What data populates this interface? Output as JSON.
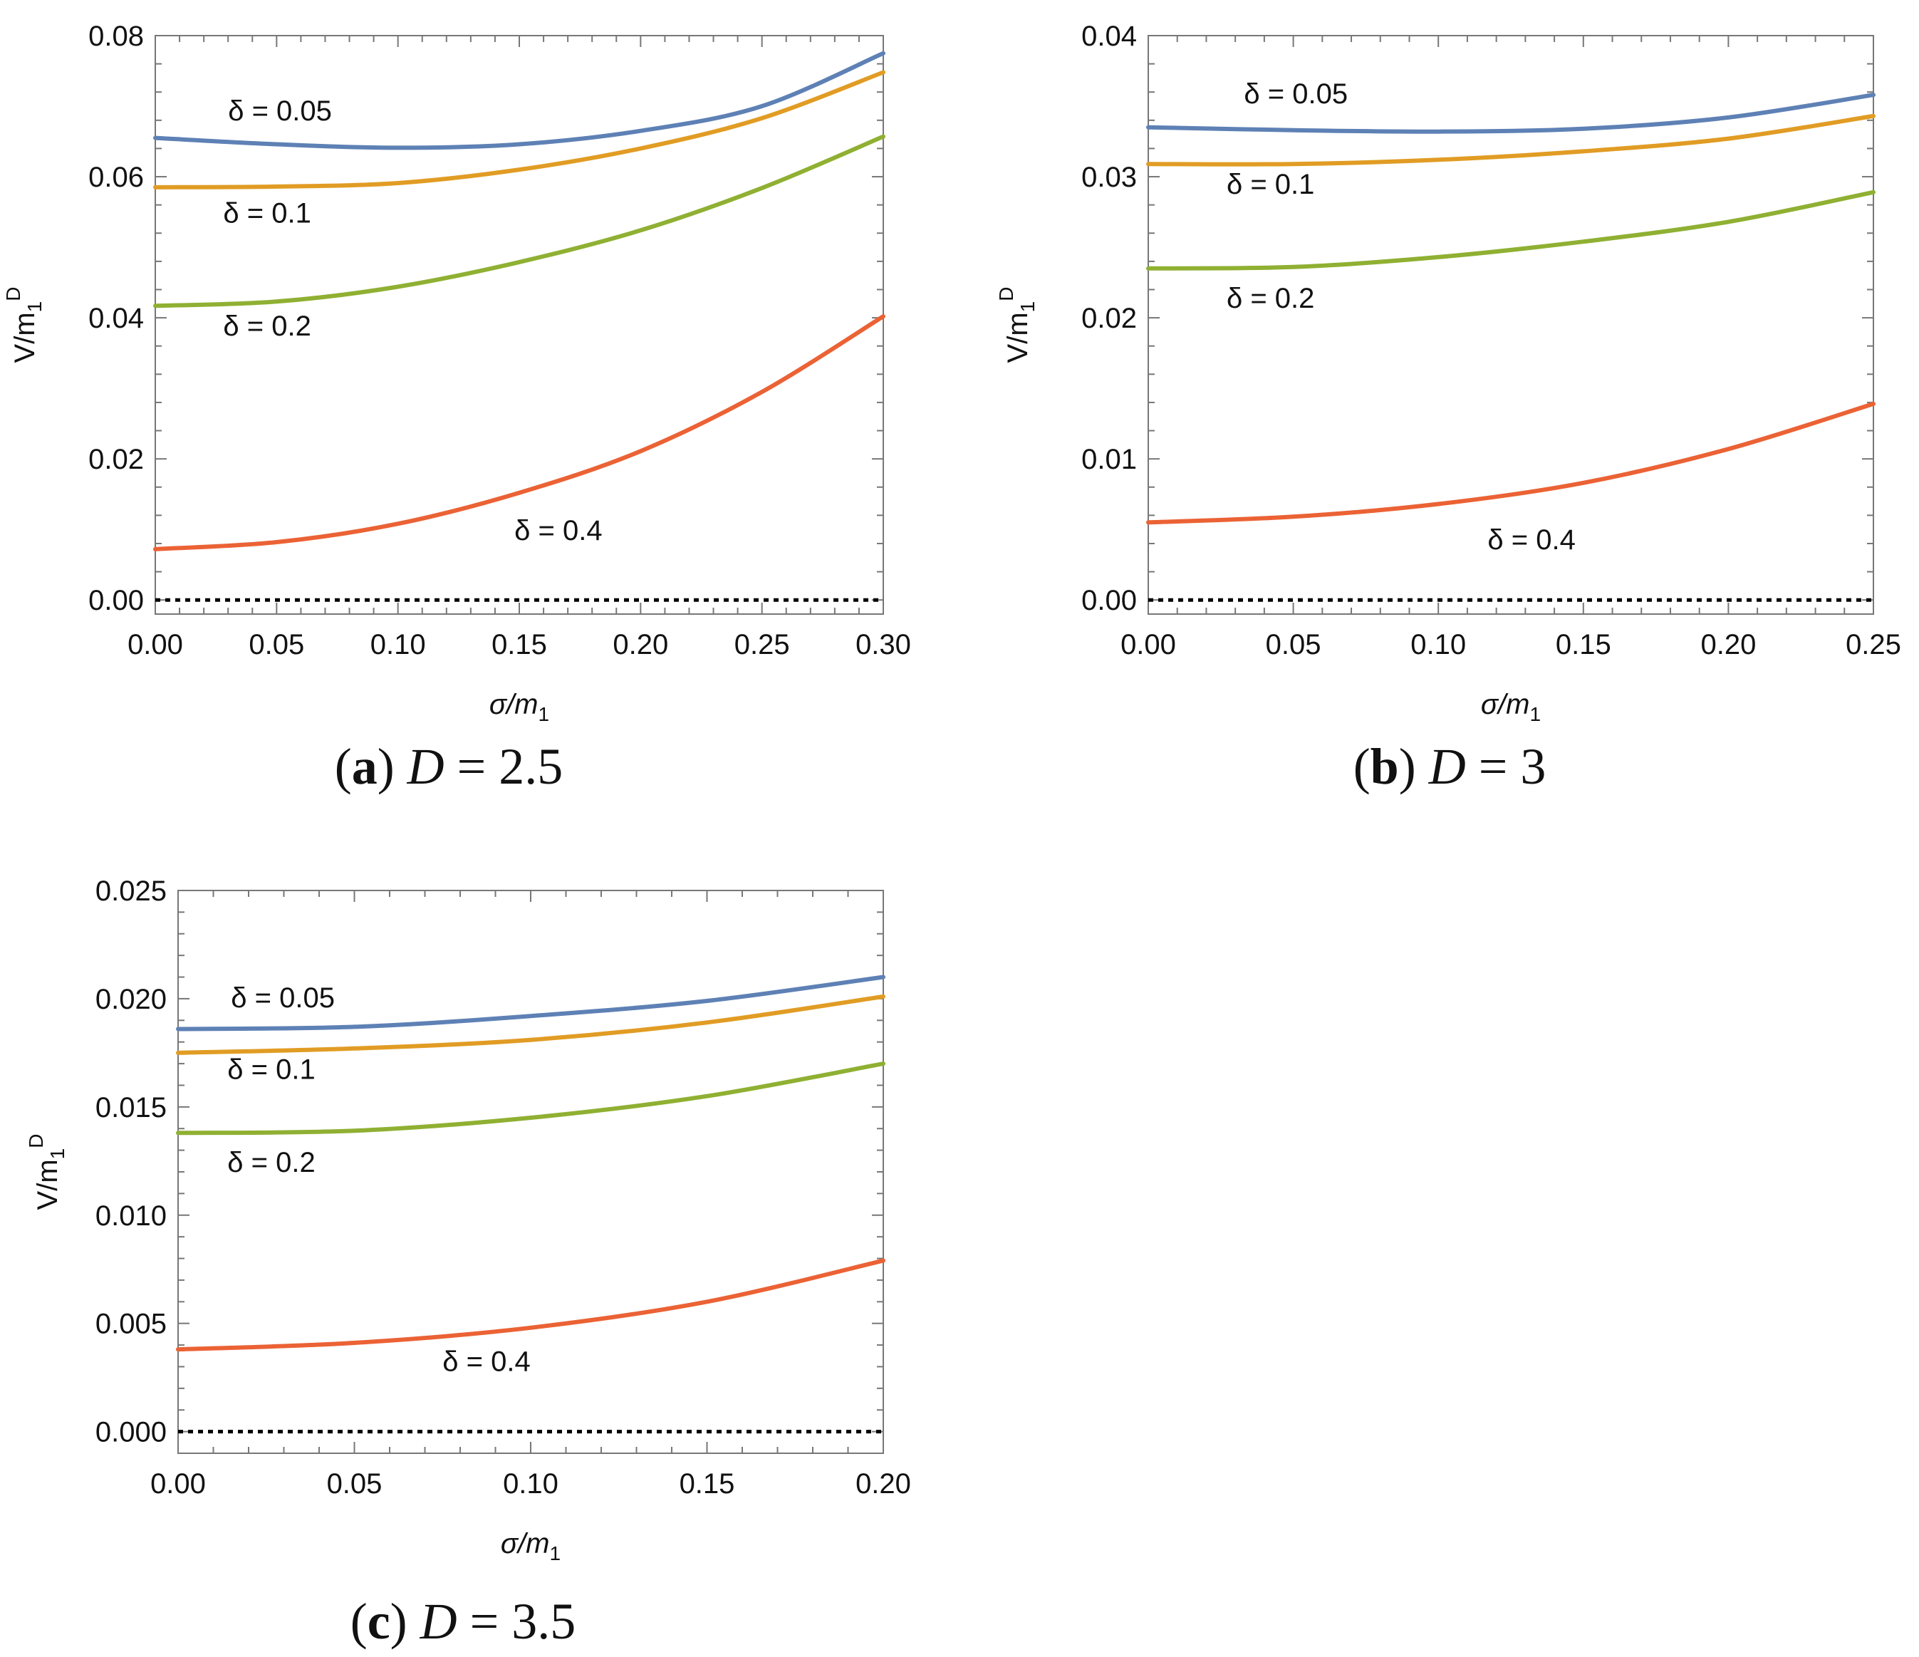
{
  "figure_title": "",
  "chart_data": [
    {
      "type": "line",
      "panel": "a",
      "caption": {
        "tag": "a",
        "var": "D",
        "value": "2.5"
      },
      "xlabel": "σ/m",
      "xlabel_sub": "1",
      "ylabel": "V/m",
      "ylabel_sub": "1",
      "ylabel_sup": "D",
      "xlim": [
        0,
        0.3
      ],
      "ylim": [
        -0.002,
        0.08
      ],
      "xticks": [
        "0.00",
        "0.05",
        "0.10",
        "0.15",
        "0.20",
        "0.25",
        "0.30"
      ],
      "yticks": [
        "0.00",
        "0.02",
        "0.04",
        "0.06",
        "0.08"
      ],
      "reference_line": {
        "y": 0,
        "style": "dotted",
        "color": "#000000"
      },
      "series": [
        {
          "name": "δ = 0.05",
          "color": "#5E81B5",
          "x": [
            0,
            0.05,
            0.1,
            0.15,
            0.2,
            0.25,
            0.3
          ],
          "values": [
            0.0655,
            0.0646,
            0.0641,
            0.0646,
            0.0665,
            0.07,
            0.0775
          ],
          "label_at": [
            0.03,
            0.068
          ]
        },
        {
          "name": "δ = 0.1",
          "color": "#E19C24",
          "x": [
            0,
            0.05,
            0.1,
            0.15,
            0.2,
            0.25,
            0.3
          ],
          "values": [
            0.0585,
            0.0586,
            0.0591,
            0.061,
            0.064,
            0.0683,
            0.0748
          ],
          "label_at": [
            0.028,
            0.0535
          ]
        },
        {
          "name": "δ = 0.2",
          "color": "#8FB032",
          "x": [
            0,
            0.05,
            0.1,
            0.15,
            0.2,
            0.25,
            0.3
          ],
          "values": [
            0.0417,
            0.0423,
            0.0444,
            0.0479,
            0.0524,
            0.0584,
            0.0657
          ],
          "label_at": [
            0.028,
            0.0375
          ]
        },
        {
          "name": "δ = 0.4",
          "color": "#EB6235",
          "x": [
            0,
            0.05,
            0.1,
            0.15,
            0.2,
            0.25,
            0.3
          ],
          "values": [
            0.0072,
            0.0082,
            0.0108,
            0.0152,
            0.0211,
            0.0295,
            0.0402
          ],
          "label_at": [
            0.148,
            0.0085
          ]
        }
      ]
    },
    {
      "type": "line",
      "panel": "b",
      "caption": {
        "tag": "b",
        "var": "D",
        "value": "3"
      },
      "xlabel": "σ/m",
      "xlabel_sub": "1",
      "ylabel": "V/m",
      "ylabel_sub": "1",
      "ylabel_sup": "D",
      "xlim": [
        0,
        0.25
      ],
      "ylim": [
        -0.001,
        0.04
      ],
      "xticks": [
        "0.00",
        "0.05",
        "0.10",
        "0.15",
        "0.20",
        "0.25"
      ],
      "yticks": [
        "0.00",
        "0.01",
        "0.02",
        "0.03",
        "0.04"
      ],
      "reference_line": {
        "y": 0,
        "style": "dotted",
        "color": "#000000"
      },
      "series": [
        {
          "name": "δ = 0.05",
          "color": "#5E81B5",
          "x": [
            0,
            0.05,
            0.1,
            0.15,
            0.2,
            0.25
          ],
          "values": [
            0.0335,
            0.0333,
            0.0332,
            0.0334,
            0.0342,
            0.0358
          ],
          "label_at": [
            0.033,
            0.0352
          ]
        },
        {
          "name": "δ = 0.1",
          "color": "#E19C24",
          "x": [
            0,
            0.05,
            0.1,
            0.15,
            0.2,
            0.25
          ],
          "values": [
            0.0309,
            0.0309,
            0.0312,
            0.0318,
            0.0327,
            0.0343
          ],
          "label_at": [
            0.027,
            0.0288
          ]
        },
        {
          "name": "δ = 0.2",
          "color": "#8FB032",
          "x": [
            0,
            0.05,
            0.1,
            0.15,
            0.2,
            0.25
          ],
          "values": [
            0.0235,
            0.0236,
            0.0243,
            0.0254,
            0.0268,
            0.0289
          ],
          "label_at": [
            0.027,
            0.0207
          ]
        },
        {
          "name": "δ = 0.4",
          "color": "#EB6235",
          "x": [
            0,
            0.05,
            0.1,
            0.15,
            0.2,
            0.25
          ],
          "values": [
            0.0055,
            0.0059,
            0.0068,
            0.0083,
            0.0107,
            0.0139
          ],
          "label_at": [
            0.117,
            0.0036
          ]
        }
      ]
    },
    {
      "type": "line",
      "panel": "c",
      "caption": {
        "tag": "c",
        "var": "D",
        "value": "3.5"
      },
      "xlabel": "σ/m",
      "xlabel_sub": "1",
      "ylabel": "V/m",
      "ylabel_sub": "1",
      "ylabel_sup": "D",
      "xlim": [
        0,
        0.2
      ],
      "ylim": [
        -0.001,
        0.025
      ],
      "xticks": [
        "0.00",
        "0.05",
        "0.10",
        "0.15",
        "0.20"
      ],
      "yticks": [
        "0.000",
        "0.005",
        "0.010",
        "0.015",
        "0.020",
        "0.025"
      ],
      "reference_line": {
        "y": 0,
        "style": "dotted",
        "color": "#000000"
      },
      "series": [
        {
          "name": "δ = 0.05",
          "color": "#5E81B5",
          "x": [
            0,
            0.05,
            0.1,
            0.15,
            0.2
          ],
          "values": [
            0.0186,
            0.0187,
            0.0192,
            0.0199,
            0.021
          ],
          "label_at": [
            0.015,
            0.0196
          ]
        },
        {
          "name": "δ = 0.1",
          "color": "#E19C24",
          "x": [
            0,
            0.05,
            0.1,
            0.15,
            0.2
          ],
          "values": [
            0.0175,
            0.0177,
            0.0181,
            0.0189,
            0.0201
          ],
          "label_at": [
            0.014,
            0.0163
          ]
        },
        {
          "name": "δ = 0.2",
          "color": "#8FB032",
          "x": [
            0,
            0.05,
            0.1,
            0.15,
            0.2
          ],
          "values": [
            0.0138,
            0.0139,
            0.0145,
            0.0155,
            0.017
          ],
          "label_at": [
            0.014,
            0.012
          ]
        },
        {
          "name": "δ = 0.4",
          "color": "#EB6235",
          "x": [
            0,
            0.05,
            0.1,
            0.15,
            0.2
          ],
          "values": [
            0.0038,
            0.0041,
            0.0048,
            0.006,
            0.0079
          ],
          "label_at": [
            0.075,
            0.0028
          ]
        }
      ]
    }
  ]
}
